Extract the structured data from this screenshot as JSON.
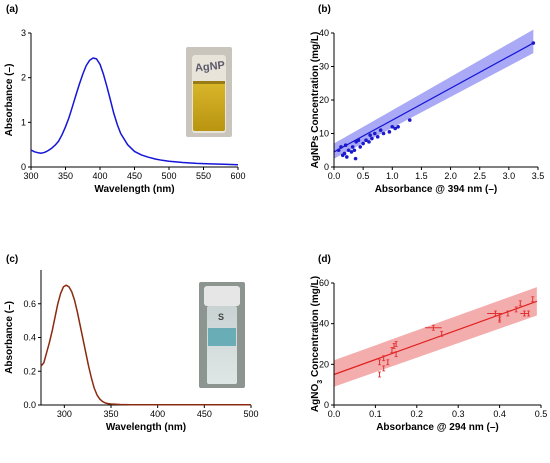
{
  "colors": {
    "blue_line": "#1515d8",
    "blue_band": "#8c8cf2",
    "blue_dots": "#1a1acc",
    "brown_line": "#8b2a10",
    "red_band": "#f08a8a",
    "red_line": "#e02020",
    "red_points": "#e03030"
  },
  "panel_labels": [
    "(a)",
    "(b)",
    "(c)",
    "(d)"
  ],
  "photo_a": {
    "label": "AgNP",
    "icon": "vial-yellow-photo"
  },
  "photo_c": {
    "label": "S",
    "icon": "vial-clear-photo"
  },
  "chart_data": [
    {
      "panel": "(a)",
      "type": "line",
      "xlabel": "Wavelength (nm)",
      "ylabel": "Absorbance (–)",
      "xlim": [
        300,
        600
      ],
      "ylim": [
        0,
        3
      ],
      "xticks": [
        300,
        350,
        400,
        450,
        500,
        550,
        600
      ],
      "yticks": [
        0,
        1,
        2,
        3
      ],
      "series": [
        {
          "x": [
            300,
            305,
            310,
            315,
            320,
            325,
            330,
            335,
            340,
            345,
            350,
            355,
            360,
            365,
            370,
            375,
            380,
            385,
            390,
            395,
            400,
            405,
            410,
            415,
            420,
            425,
            430,
            440,
            450,
            460,
            470,
            480,
            490,
            500,
            520,
            540,
            560,
            580,
            600
          ],
          "y": [
            0.38,
            0.34,
            0.32,
            0.31,
            0.33,
            0.37,
            0.42,
            0.49,
            0.58,
            0.72,
            0.9,
            1.1,
            1.35,
            1.6,
            1.85,
            2.08,
            2.27,
            2.39,
            2.44,
            2.42,
            2.3,
            2.08,
            1.8,
            1.5,
            1.2,
            0.95,
            0.75,
            0.5,
            0.35,
            0.27,
            0.22,
            0.18,
            0.15,
            0.13,
            0.1,
            0.08,
            0.07,
            0.06,
            0.05
          ]
        }
      ]
    },
    {
      "panel": "(b)",
      "type": "scatter",
      "xlabel": "Absorbance @ 394 nm (–)",
      "ylabel": "AgNPs Concentration (mg/L)",
      "xlim": [
        0,
        3.5
      ],
      "ylim": [
        0,
        40
      ],
      "xticks": [
        0.0,
        0.5,
        1.0,
        1.5,
        2.0,
        2.5,
        3.0,
        3.5
      ],
      "yticks": [
        0,
        10,
        20,
        30,
        40
      ],
      "points": [
        [
          0.08,
          5
        ],
        [
          0.12,
          6
        ],
        [
          0.15,
          3.5
        ],
        [
          0.18,
          4
        ],
        [
          0.2,
          6.5
        ],
        [
          0.22,
          3
        ],
        [
          0.25,
          5
        ],
        [
          0.3,
          4.5
        ],
        [
          0.32,
          6
        ],
        [
          0.35,
          5
        ],
        [
          0.37,
          2.5
        ],
        [
          0.38,
          7.5
        ],
        [
          0.42,
          8
        ],
        [
          0.45,
          6
        ],
        [
          0.5,
          7
        ],
        [
          0.55,
          8
        ],
        [
          0.6,
          7.5
        ],
        [
          0.62,
          9.5
        ],
        [
          0.65,
          8.5
        ],
        [
          0.7,
          10
        ],
        [
          0.75,
          9
        ],
        [
          0.8,
          11
        ],
        [
          0.85,
          10
        ],
        [
          0.95,
          10.5
        ],
        [
          1.0,
          12
        ],
        [
          1.05,
          11.5
        ],
        [
          1.1,
          12
        ],
        [
          1.3,
          14
        ],
        [
          3.42,
          37
        ]
      ],
      "fit": {
        "x": [
          0.0,
          3.42
        ],
        "y": [
          4.5,
          37
        ],
        "band_lower": [
          2.5,
          34
        ],
        "band_upper": [
          7,
          41
        ]
      }
    },
    {
      "panel": "(c)",
      "type": "line",
      "xlabel": "Wavelength (nm)",
      "ylabel": "Absorbance (–)",
      "xlim": [
        275,
        500
      ],
      "ylim": [
        0,
        0.8
      ],
      "xticks": [
        300,
        350,
        400,
        450,
        500
      ],
      "yticks": [
        0,
        0.2,
        0.4,
        0.6
      ],
      "series": [
        {
          "x": [
            275,
            278,
            281,
            284,
            287,
            290,
            293,
            296,
            299,
            302,
            305,
            308,
            311,
            314,
            317,
            320,
            323,
            326,
            329,
            332,
            335,
            338,
            341,
            344,
            347,
            350,
            355,
            360,
            370,
            380,
            400,
            420,
            450,
            475,
            500
          ],
          "y": [
            0.23,
            0.25,
            0.31,
            0.37,
            0.44,
            0.52,
            0.6,
            0.66,
            0.7,
            0.71,
            0.7,
            0.67,
            0.62,
            0.55,
            0.47,
            0.39,
            0.31,
            0.23,
            0.16,
            0.1,
            0.06,
            0.035,
            0.02,
            0.012,
            0.008,
            0.006,
            0.004,
            0.003,
            0.002,
            0.002,
            0.001,
            0.001,
            0.001,
            0.001,
            0.001
          ]
        }
      ]
    },
    {
      "panel": "(d)",
      "type": "scatter",
      "xlabel": "Absorbance @ 294 nm (–)",
      "ylabel_main": "AgNO",
      "ylabel_sub": "3",
      "ylabel_rest": " Concentration (mg/L)",
      "xlim": [
        0,
        0.5
      ],
      "ylim": [
        0,
        60
      ],
      "xticks": [
        0.0,
        0.1,
        0.2,
        0.3,
        0.4,
        0.5
      ],
      "yticks": [
        0,
        20,
        40,
        60
      ],
      "points": [
        [
          0.11,
          15
        ],
        [
          0.11,
          21
        ],
        [
          0.12,
          23
        ],
        [
          0.12,
          18
        ],
        [
          0.13,
          21
        ],
        [
          0.14,
          27
        ],
        [
          0.145,
          29
        ],
        [
          0.15,
          25
        ],
        [
          0.15,
          30
        ],
        [
          0.24,
          38
        ],
        [
          0.26,
          35
        ],
        [
          0.39,
          45
        ],
        [
          0.4,
          43
        ],
        [
          0.4,
          42
        ],
        [
          0.42,
          45
        ],
        [
          0.44,
          47
        ],
        [
          0.45,
          50
        ],
        [
          0.46,
          45
        ],
        [
          0.47,
          45
        ],
        [
          0.48,
          52
        ]
      ],
      "xerr": [
        [
          0.24,
          0.02
        ],
        [
          0.39,
          0.02
        ],
        [
          0.46,
          0.01
        ]
      ],
      "fit": {
        "x": [
          0.0,
          0.49
        ],
        "y": [
          15,
          51
        ],
        "band_lower": [
          9,
          44
        ],
        "band_upper": [
          22,
          58
        ]
      }
    }
  ]
}
